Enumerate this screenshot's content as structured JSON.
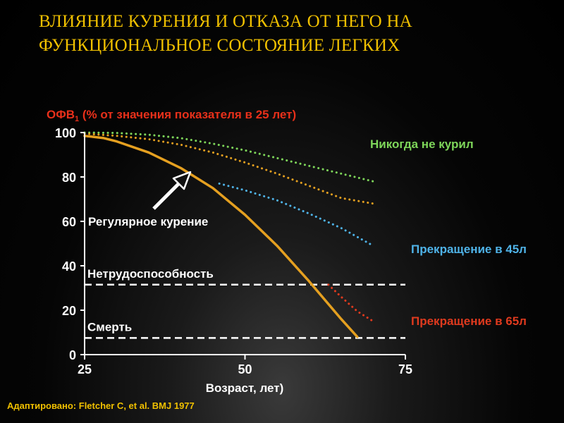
{
  "title_lines": [
    "Влияние курения и отказа от него на",
    "функциональное состояние легких"
  ],
  "source": "Адаптировано: Fletcher C, et al. BMJ 1977",
  "colors": {
    "title": "#f0c000",
    "never_smoked": "#7ed65a",
    "regular_smoking": "#e5a020",
    "quit_45": "#4fb3e8",
    "quit_65": "#e03a1e",
    "axis_label": "#e8301a"
  },
  "chart_data": {
    "type": "line",
    "ylabel": "ОФВ",
    "ylabel_sub": "1",
    "ylabel_rest": " (% от значения показателя в 25 лет)",
    "xlabel": "Возраст, лет)",
    "xlim": [
      25,
      75
    ],
    "ylim": [
      0,
      100
    ],
    "x_ticks": [
      25,
      50,
      75
    ],
    "y_ticks": [
      0,
      20,
      40,
      60,
      80,
      100
    ],
    "series": [
      {
        "name": "Никогда не курил",
        "style": "dotted",
        "color": "#7ed65a",
        "points": [
          [
            25,
            100
          ],
          [
            30,
            99.8
          ],
          [
            35,
            99
          ],
          [
            40,
            97.5
          ],
          [
            45,
            95
          ],
          [
            50,
            92
          ],
          [
            55,
            88.5
          ],
          [
            60,
            85
          ],
          [
            65,
            81.5
          ],
          [
            70,
            78
          ]
        ]
      },
      {
        "name": "",
        "style": "dotted",
        "color": "#e5a020",
        "points": [
          [
            25,
            99.5
          ],
          [
            30,
            98.5
          ],
          [
            35,
            97
          ],
          [
            40,
            94.5
          ],
          [
            45,
            91
          ],
          [
            50,
            86.5
          ],
          [
            55,
            81.5
          ],
          [
            60,
            76
          ],
          [
            65,
            70.5
          ],
          [
            70,
            68
          ]
        ]
      },
      {
        "name": "Регулярное курение",
        "style": "solid",
        "color": "#e5a020",
        "points": [
          [
            25,
            98.5
          ],
          [
            28,
            97.5
          ],
          [
            30,
            96
          ],
          [
            35,
            91
          ],
          [
            40,
            84
          ],
          [
            45,
            75
          ],
          [
            50,
            63
          ],
          [
            55,
            49
          ],
          [
            60,
            33
          ],
          [
            65,
            16
          ],
          [
            67.5,
            8
          ]
        ]
      },
      {
        "name": "Прекращение в 45л",
        "style": "dotted",
        "color": "#4fb3e8",
        "points": [
          [
            46,
            77
          ],
          [
            50,
            74
          ],
          [
            55,
            69.5
          ],
          [
            60,
            63.5
          ],
          [
            65,
            57
          ],
          [
            70,
            49
          ]
        ]
      },
      {
        "name": "Прекращение в 65л",
        "style": "dotted",
        "color": "#e03a1e",
        "points": [
          [
            63,
            31.5
          ],
          [
            65,
            26
          ],
          [
            67.5,
            19.5
          ],
          [
            70,
            15
          ]
        ]
      }
    ],
    "thresholds": [
      {
        "name": "Нетрудоспособность",
        "y": 31.5
      },
      {
        "name": "Смерть",
        "y": 7.5
      }
    ],
    "annotation": "Регулярное курение",
    "legend_labels": {
      "never": "Никогда не курил",
      "quit45": "Прекращение в 45л",
      "quit65": "Прекращение в 65л"
    }
  }
}
